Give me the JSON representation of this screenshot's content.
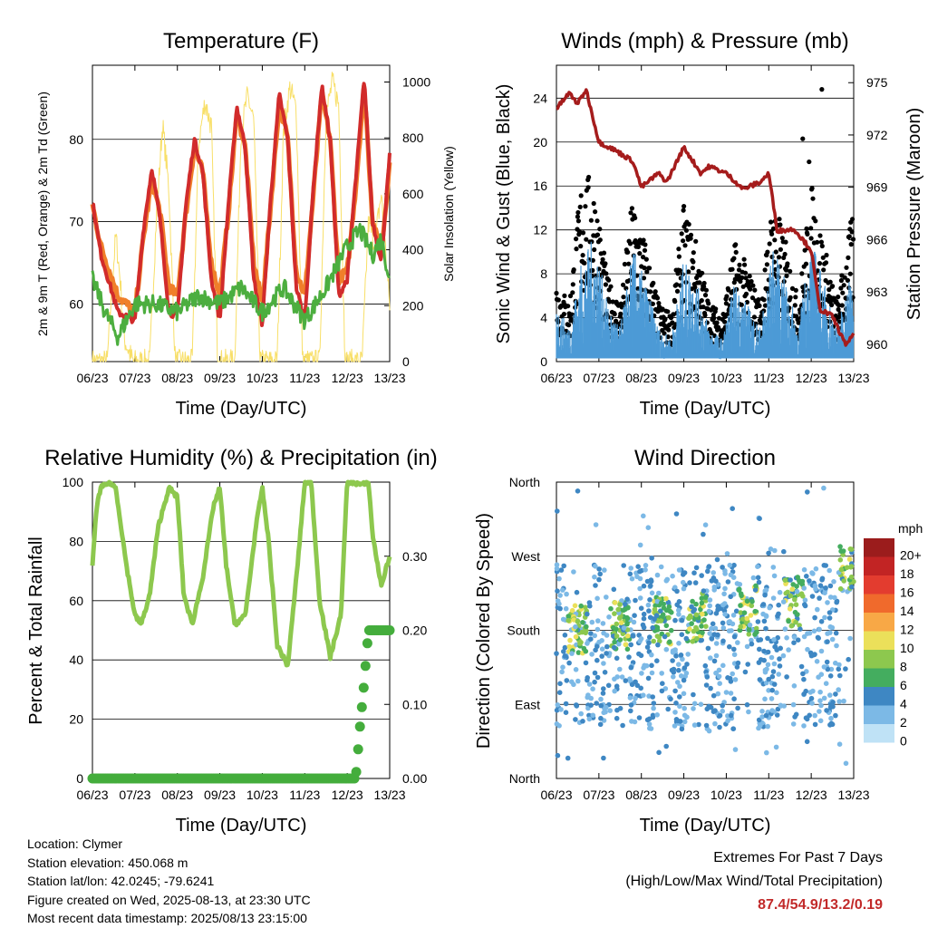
{
  "time_ticks": [
    "06/23",
    "07/23",
    "08/23",
    "09/23",
    "10/23",
    "11/23",
    "12/23",
    "13/23"
  ],
  "chart_data": [
    {
      "type": "line",
      "title": "Temperature (F)",
      "xlabel": "Time (Day/UTC)",
      "ylabel": "2m & 9m T (Red, Orange) & 2m Td (Green)",
      "y2label": "Solar Insolation (Yellow)",
      "ylim": [
        53,
        89
      ],
      "y2lim": [
        0,
        1060
      ],
      "yticks": [
        60,
        70,
        80
      ],
      "y2ticks": [
        0,
        200,
        400,
        600,
        800,
        1000
      ],
      "grid": true,
      "colors": {
        "t2m": "#d12b2b",
        "t9m": "#f07f2a",
        "td": "#4cae3f",
        "solar": "#f8df68"
      },
      "series": [
        {
          "key": "t2m",
          "x": [
            0,
            0.2,
            0.6,
            1.0,
            1.2,
            1.4,
            1.6,
            1.8,
            2.0,
            2.2,
            2.4,
            2.6,
            2.8,
            3.0,
            3.2,
            3.4,
            3.6,
            3.8,
            4.0,
            4.2,
            4.4,
            4.6,
            4.8,
            5.0,
            5.2,
            5.4,
            5.6,
            5.8,
            6.0,
            6.2,
            6.4,
            6.6,
            6.8,
            7.0
          ],
          "values": [
            72.5,
            66,
            59,
            58,
            69,
            76.5,
            70,
            59,
            58.5,
            72,
            80,
            76,
            63,
            58,
            72,
            84,
            79,
            63,
            57.5,
            73,
            85.5,
            80,
            62,
            58,
            74,
            86.5,
            80,
            61,
            63,
            75,
            87.5,
            70,
            65,
            78
          ]
        },
        {
          "key": "t9m",
          "x": [
            0,
            0.2,
            0.6,
            1.0,
            1.2,
            1.4,
            1.6,
            1.8,
            2.0,
            2.2,
            2.4,
            2.6,
            2.8,
            3.0,
            3.2,
            3.4,
            3.6,
            3.8,
            4.0,
            4.2,
            4.4,
            4.6,
            4.8,
            5.0,
            5.2,
            5.4,
            5.6,
            5.8,
            6.0,
            6.2,
            6.4,
            6.6,
            6.8,
            7.0
          ],
          "values": [
            72,
            67,
            61,
            59,
            68,
            75,
            71,
            62,
            61,
            71,
            79,
            76,
            65,
            61,
            71,
            83,
            79,
            65,
            60,
            72,
            84.5,
            80,
            64,
            61,
            73,
            85.5,
            80,
            63,
            64,
            74,
            86.5,
            70,
            66,
            77
          ]
        },
        {
          "key": "td",
          "x": [
            0,
            0.3,
            0.6,
            1.0,
            1.5,
            2.0,
            2.5,
            3.0,
            3.5,
            4.0,
            4.5,
            5.0,
            5.5,
            6.0,
            6.3,
            6.6,
            6.8,
            7.0
          ],
          "values": [
            63,
            59,
            56,
            60,
            60,
            59,
            61,
            60,
            62,
            59,
            62,
            58,
            62,
            67,
            69,
            66,
            68,
            63
          ]
        },
        {
          "key": "solar",
          "x": [
            0,
            0.35,
            0.45,
            0.55,
            0.65,
            0.75,
            0.95,
            1.35,
            1.5,
            1.65,
            1.8,
            1.95,
            2.35,
            2.5,
            2.65,
            2.8,
            2.95,
            3.35,
            3.5,
            3.65,
            3.8,
            3.95,
            4.35,
            4.5,
            4.65,
            4.8,
            4.95,
            5.35,
            5.5,
            5.65,
            5.8,
            5.95,
            6.35,
            6.5,
            6.65,
            6.8,
            7.0
          ],
          "values": [
            0,
            0,
            250,
            450,
            300,
            80,
            0,
            0,
            500,
            850,
            620,
            0,
            0,
            780,
            930,
            840,
            0,
            0,
            820,
            950,
            860,
            0,
            0,
            830,
            980,
            900,
            0,
            0,
            880,
            1000,
            920,
            0,
            0,
            500,
            420,
            600,
            200
          ]
        }
      ]
    },
    {
      "type": "scatter",
      "title": "Winds (mph) & Pressure (mb)",
      "xlabel": "Time (Day/UTC)",
      "ylabel": "Sonic Wind & Gust (Blue, Black)",
      "y2label": "Station Pressure (Maroon)",
      "ylim": [
        0,
        27
      ],
      "y2lim": [
        959,
        976
      ],
      "yticks": [
        0,
        4,
        8,
        12,
        16,
        20,
        24
      ],
      "y2ticks": [
        960,
        963,
        966,
        969,
        972,
        975
      ],
      "grid": true,
      "colors": {
        "wind": "#4d9bd6",
        "gust": "#000000",
        "pressure": "#a51c1c"
      },
      "wind_envelope": {
        "x": [
          0,
          0.3,
          0.6,
          0.9,
          1.2,
          1.5,
          1.8,
          2.1,
          2.4,
          2.7,
          3.0,
          3.3,
          3.6,
          3.9,
          4.2,
          4.5,
          4.8,
          5.1,
          5.4,
          5.7,
          6.0,
          6.3,
          6.6,
          7.0
        ],
        "values": [
          5,
          3,
          9,
          11,
          5,
          3,
          10,
          7,
          3,
          2,
          9,
          7,
          3,
          2,
          7,
          5,
          3,
          10,
          7,
          3,
          11,
          7,
          3,
          9
        ]
      },
      "gust_envelope": {
        "x": [
          0,
          0.3,
          0.6,
          0.9,
          1.2,
          1.5,
          1.8,
          2.1,
          2.4,
          2.7,
          3.0,
          3.3,
          3.6,
          3.9,
          4.2,
          4.5,
          4.8,
          5.1,
          5.4,
          5.7,
          6.0,
          6.3,
          6.6,
          7.0
        ],
        "values": [
          7,
          5,
          16,
          15,
          7,
          5,
          14,
          10,
          5,
          4,
          13,
          10,
          5,
          4,
          10,
          8,
          5,
          14,
          10,
          5,
          15,
          10,
          5,
          13
        ]
      },
      "gust_outliers": {
        "x": [
          5.8,
          5.95,
          6.25
        ],
        "values": [
          20.3,
          18.2,
          24.8
        ]
      },
      "pressure": {
        "x": [
          0,
          0.3,
          0.5,
          0.7,
          1.0,
          1.4,
          1.8,
          2.0,
          2.4,
          2.6,
          3.0,
          3.4,
          3.6,
          4.0,
          4.4,
          4.8,
          5.0,
          5.2,
          5.6,
          6.0,
          6.2,
          6.5,
          6.8,
          7.0
        ],
        "values": [
          973.5,
          974.4,
          973.8,
          974.6,
          971.6,
          971.1,
          970.5,
          969.0,
          969.8,
          969.3,
          971.3,
          969.8,
          970.2,
          969.8,
          968.9,
          969.3,
          969.8,
          966.5,
          966.6,
          965.4,
          962.0,
          961.6,
          960.0,
          960.5
        ]
      }
    },
    {
      "type": "line",
      "title": "Relative Humidity (%) & Precipitation (in)",
      "xlabel": "Time (Day/UTC)",
      "ylabel": "Percent & Total Rainfall",
      "ylim": [
        0,
        100
      ],
      "y2lim": [
        0,
        0.4
      ],
      "yticks": [
        0,
        20,
        40,
        60,
        80,
        100
      ],
      "y2ticks": [
        "0.00",
        "0.10",
        "0.20",
        "0.30"
      ],
      "grid": true,
      "colors": {
        "rh": "#8dc84e",
        "precip": "#44ad3c"
      },
      "series": [
        {
          "key": "rh",
          "x": [
            0,
            0.1,
            0.2,
            0.4,
            0.55,
            0.8,
            1.0,
            1.15,
            1.35,
            1.55,
            1.8,
            2.0,
            2.15,
            2.35,
            2.6,
            2.85,
            3.0,
            3.15,
            3.35,
            3.6,
            3.85,
            4.0,
            4.15,
            4.35,
            4.6,
            4.85,
            5.0,
            5.15,
            5.35,
            5.6,
            5.85,
            6.0,
            6.15,
            6.35,
            6.5,
            6.6,
            6.8,
            7.0
          ],
          "values": [
            72,
            92,
            98,
            100,
            98,
            72,
            55,
            52,
            62,
            85,
            98,
            95,
            62,
            52,
            68,
            92,
            98,
            72,
            52,
            55,
            85,
            98,
            80,
            45,
            38,
            75,
            100,
            100,
            60,
            41,
            55,
            100,
            100,
            99,
            100,
            82,
            65,
            75
          ]
        },
        {
          "key": "precip",
          "x": [
            0,
            6.0,
            6.2,
            6.3,
            6.4,
            6.5,
            7.0
          ],
          "values": [
            0,
            0,
            0,
            0.07,
            0.13,
            0.2,
            0.2
          ]
        }
      ]
    },
    {
      "type": "scatter",
      "title": "Wind Direction",
      "xlabel": "Time (Day/UTC)",
      "ylabel": "Direction (Colored By Speed)",
      "ylim": [
        0,
        360
      ],
      "ytick_labels": [
        "North",
        "East",
        "South",
        "West",
        "North"
      ],
      "grid": true,
      "legend_title": "mph",
      "legend_labels": [
        "20+",
        "18",
        "16",
        "14",
        "12",
        "10",
        "8",
        "6",
        "4",
        "2",
        "0"
      ],
      "legend_colors": [
        "#9b1c1c",
        "#c22424",
        "#e33c2f",
        "#f06a2c",
        "#f8a846",
        "#ebe05a",
        "#8dc84e",
        "#44ad5f",
        "#3e87c3",
        "#7cb9e6",
        "#bfe2f6"
      ],
      "clusters": [
        {
          "x": 0.5,
          "dir": 180,
          "speed": 8
        },
        {
          "x": 1.5,
          "dir": 185,
          "speed": 7
        },
        {
          "x": 2.5,
          "dir": 190,
          "speed": 7
        },
        {
          "x": 3.3,
          "dir": 195,
          "speed": 7
        },
        {
          "x": 4.5,
          "dir": 205,
          "speed": 8
        },
        {
          "x": 5.6,
          "dir": 215,
          "speed": 7
        },
        {
          "x": 6.9,
          "dir": 260,
          "speed": 7
        }
      ]
    }
  ],
  "info": {
    "location": "Location: Clymer",
    "elevation": "Station elevation: 450.068 m",
    "latlon": "Station lat/lon: 42.0245; -79.6241",
    "created": "Figure created on Wed, 2025-08-13, at 23:30 UTC",
    "recent": "Most recent data timestamp: 2025/08/13 23:15:00"
  },
  "extremes": {
    "title": "Extremes For Past 7 Days",
    "subtitle": "(High/Low/Max Wind/Total Precipitation)",
    "values": "87.4/54.9/13.2/0.19"
  }
}
